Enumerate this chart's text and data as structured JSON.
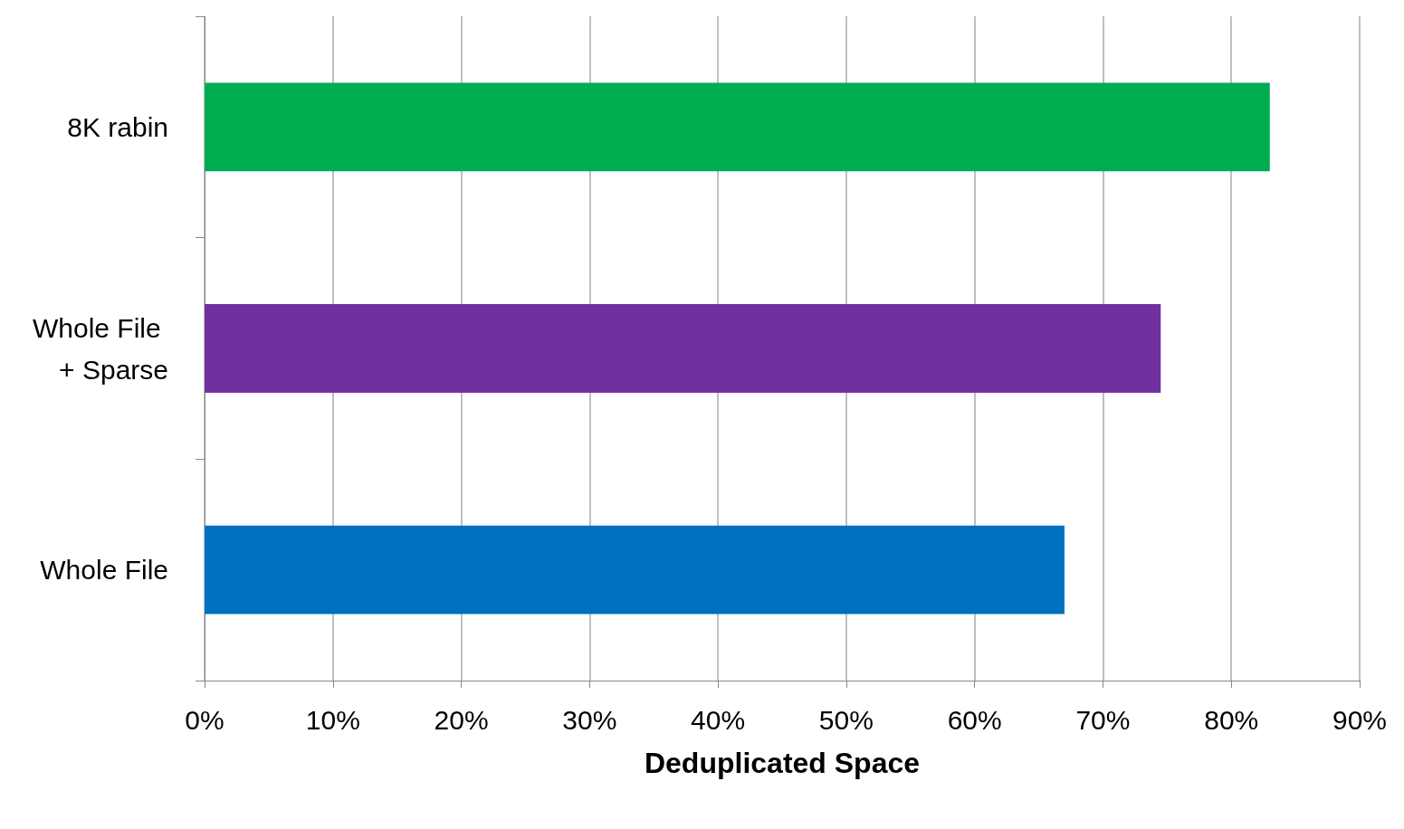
{
  "chart_data": {
    "type": "bar",
    "orientation": "horizontal",
    "xlabel": "Deduplicated Space",
    "categories": [
      "8K rabin",
      "Whole File + Sparse",
      "Whole File"
    ],
    "values": [
      83,
      74.5,
      67
    ],
    "colors": [
      "#00ac50",
      "#7030a0",
      "#0070c0"
    ],
    "xlim": [
      0,
      90
    ],
    "xticks": [
      {
        "value": 0,
        "label": "0%"
      },
      {
        "value": 10,
        "label": "10%"
      },
      {
        "value": 20,
        "label": "20%"
      },
      {
        "value": 30,
        "label": "30%"
      },
      {
        "value": 40,
        "label": "40%"
      },
      {
        "value": 50,
        "label": "50%"
      },
      {
        "value": 60,
        "label": "60%"
      },
      {
        "value": 70,
        "label": "70%"
      },
      {
        "value": 80,
        "label": "80%"
      },
      {
        "value": 90,
        "label": "90%"
      }
    ],
    "grid": "x"
  }
}
